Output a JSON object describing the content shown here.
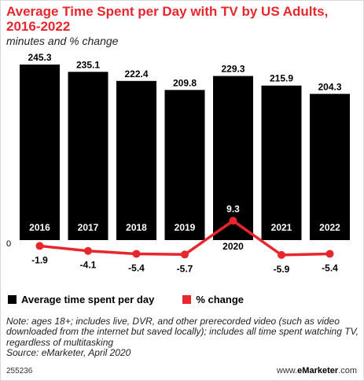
{
  "header": {
    "title": "Average Time Spent per Day with TV by US Adults, 2016-2022",
    "subtitle": "minutes and % change"
  },
  "chart_data": {
    "type": "bar",
    "categories": [
      "2016",
      "2017",
      "2018",
      "2019",
      "2020",
      "2021",
      "2022"
    ],
    "series": [
      {
        "name": "Average time spent per day",
        "type": "bar",
        "color": "#000000",
        "values": [
          245.3,
          235.1,
          222.4,
          209.8,
          229.3,
          215.9,
          204.3
        ],
        "labels": [
          "245.3",
          "235.1",
          "222.4",
          "209.8",
          "229.3",
          "215.9",
          "204.3"
        ]
      },
      {
        "name": "% change",
        "type": "line",
        "color": "#e8262e",
        "values": [
          -1.9,
          -4.1,
          -5.4,
          -5.7,
          9.3,
          -5.9,
          -5.4
        ],
        "labels": [
          "-1.9",
          "-4.1",
          "-5.4",
          "-5.7",
          "9.3",
          "-5.9",
          "-5.4"
        ]
      }
    ],
    "zero_label": "0",
    "grid": false,
    "legend_position": "bottom-left"
  },
  "legend": {
    "bar_label": "Average time spent per day",
    "line_label": "% change"
  },
  "footer": {
    "note": "Note: ages 18+; includes live, DVR, and other prerecorded video (such as video downloaded from the internet but saved locally); includes all time spent watching TV, regardless of multitasking",
    "source": "Source: eMarketer, April 2020",
    "chart_id": "255236",
    "brand_prefix": "www.",
    "brand_name": "eMarketer",
    "brand_suffix": ".com"
  }
}
